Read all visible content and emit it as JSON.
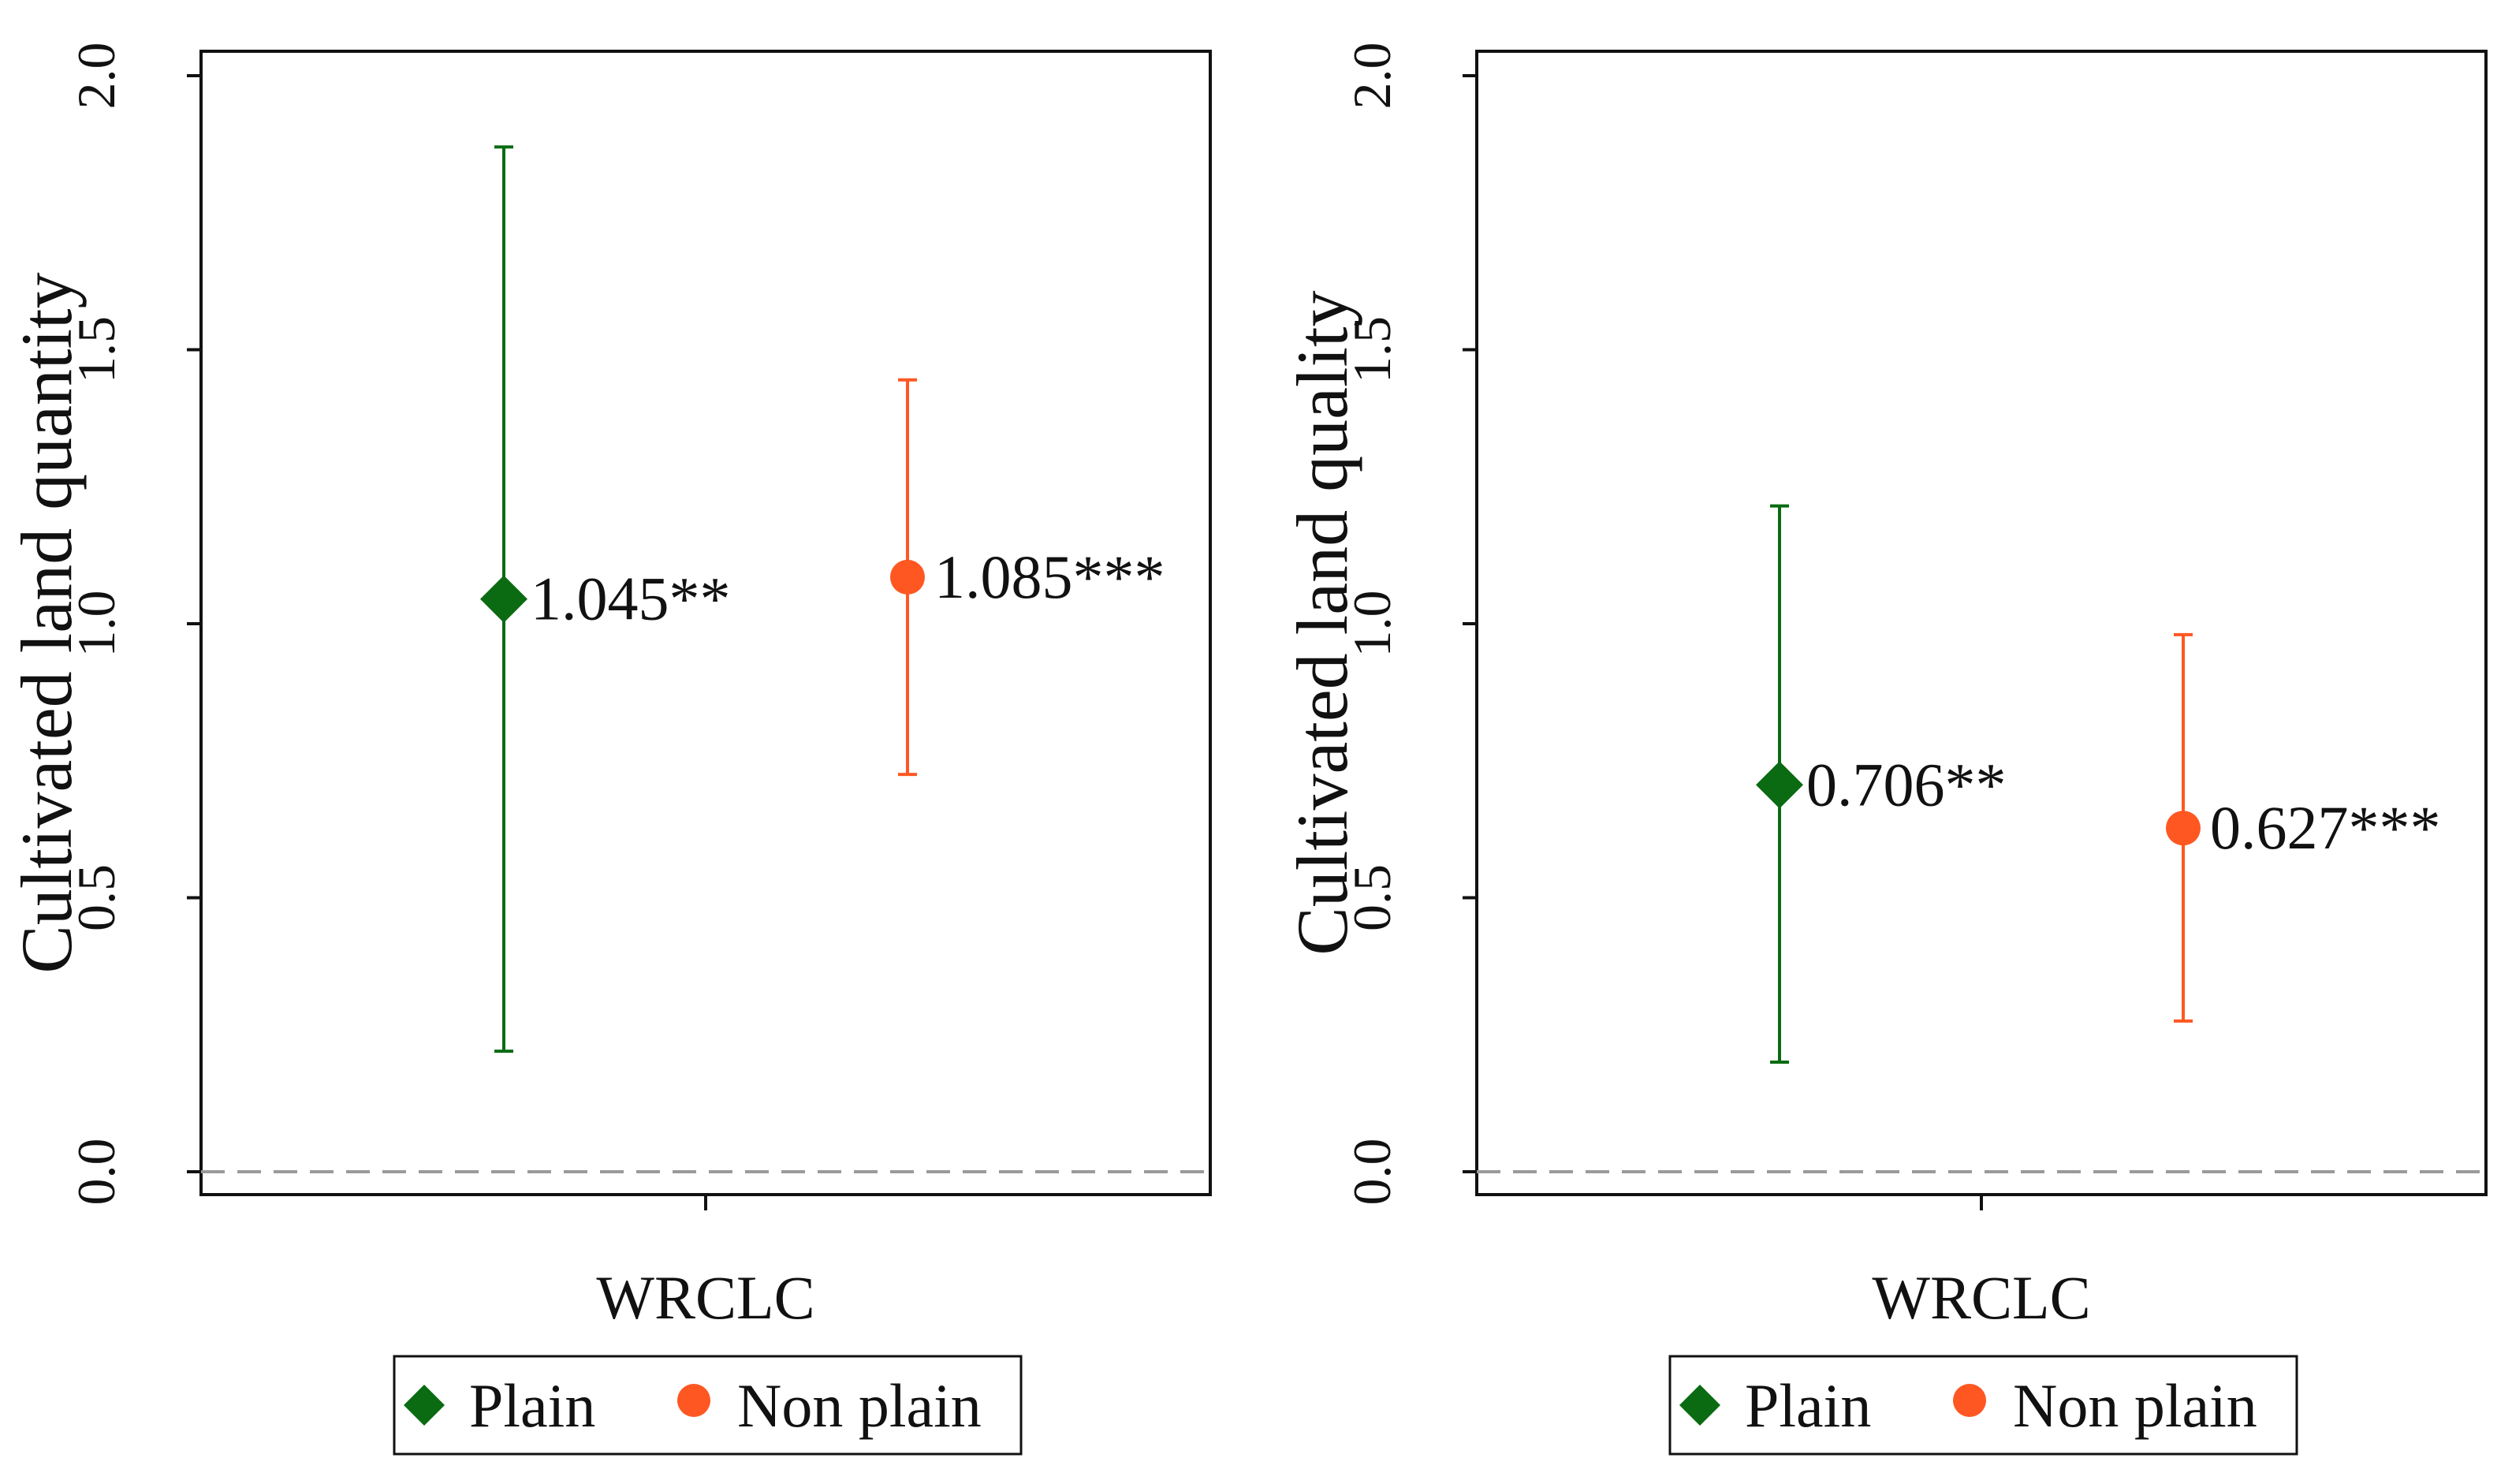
{
  "chart_data": [
    {
      "type": "scatter",
      "subtype": "coefficient-plot-with-ci",
      "ylabel": "Cultivated land quantity",
      "xlabel": "WRCLC",
      "ylim": [
        0,
        2
      ],
      "yticks": [
        "0.0",
        "0.5",
        "1.0",
        "1.5",
        "2.0"
      ],
      "reference_line": 0,
      "series": [
        {
          "name": "Plain",
          "marker": "diamond",
          "color": "#0a6b12",
          "estimate": 1.045,
          "ci_low": 0.22,
          "ci_high": 1.87,
          "label": "1.045**"
        },
        {
          "name": "Non plain",
          "marker": "circle",
          "color": "#ff5722",
          "estimate": 1.085,
          "ci_low": 0.725,
          "ci_high": 1.445,
          "label": "1.085***"
        }
      ],
      "legend": [
        "Plain",
        "Non plain"
      ]
    },
    {
      "type": "scatter",
      "subtype": "coefficient-plot-with-ci",
      "ylabel": "Cultivated land quality",
      "xlabel": "WRCLC",
      "ylim": [
        0,
        2
      ],
      "yticks": [
        "0.0",
        "0.5",
        "1.0",
        "1.5",
        "2.0"
      ],
      "reference_line": 0,
      "series": [
        {
          "name": "Plain",
          "marker": "diamond",
          "color": "#0a6b12",
          "estimate": 0.706,
          "ci_low": 0.2,
          "ci_high": 1.215,
          "label": "0.706**"
        },
        {
          "name": "Non plain",
          "marker": "circle",
          "color": "#ff5722",
          "estimate": 0.627,
          "ci_low": 0.275,
          "ci_high": 0.98,
          "label": "0.627***"
        }
      ],
      "legend": [
        "Plain",
        "Non plain"
      ]
    }
  ]
}
